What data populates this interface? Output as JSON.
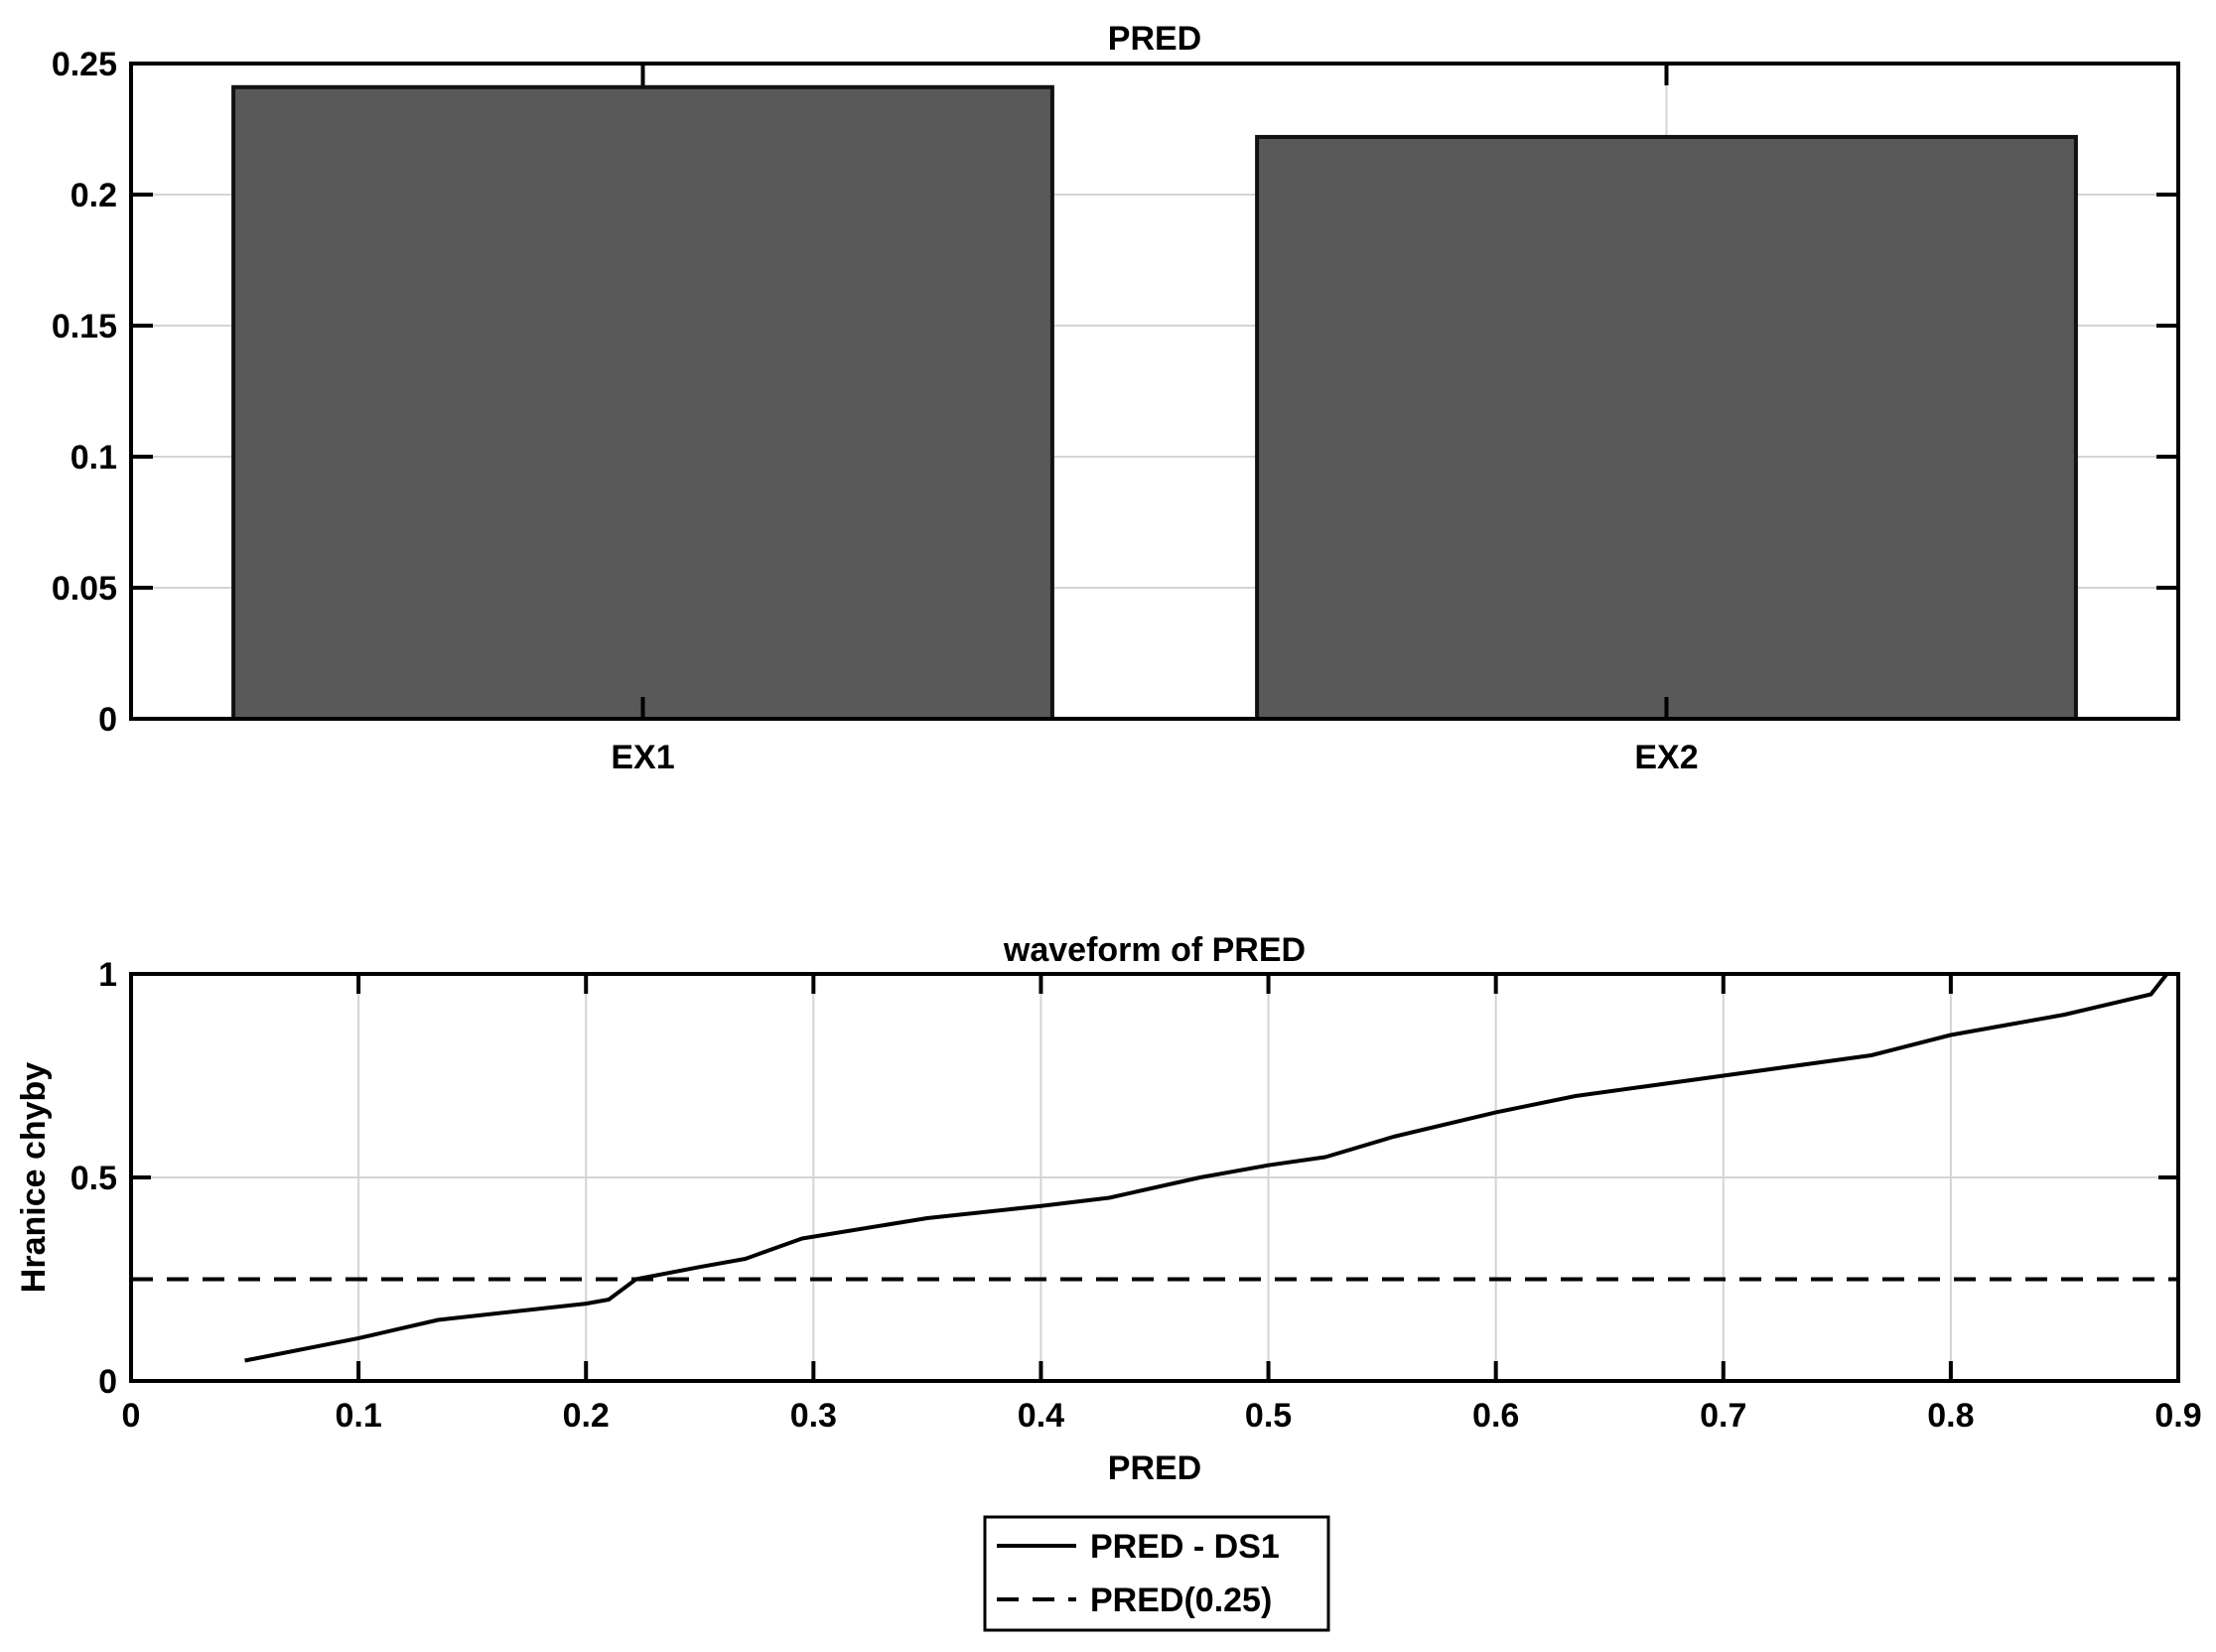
{
  "chart_data": [
    {
      "type": "bar",
      "title": "PRED",
      "xlabel": "",
      "ylabel": "",
      "categories": [
        "EX1",
        "EX2"
      ],
      "values": [
        0.241,
        0.222
      ],
      "ylim": [
        0,
        0.25
      ],
      "yticks": [
        0,
        0.05,
        0.1,
        0.15,
        0.2,
        0.25
      ],
      "ytick_labels": [
        "0",
        "0.05",
        "0.1",
        "0.15",
        "0.2",
        "0.25"
      ],
      "grid": true,
      "bar_color": "#595959"
    },
    {
      "type": "line",
      "title": "waveform of PRED",
      "xlabel": "PRED",
      "ylabel": "Hranice chyby",
      "xlim": [
        0,
        0.9
      ],
      "ylim": [
        0,
        1
      ],
      "xticks": [
        0,
        0.1,
        0.2,
        0.3,
        0.4,
        0.5,
        0.6,
        0.7,
        0.8,
        0.9
      ],
      "xtick_labels": [
        "0",
        "0.1",
        "0.2",
        "0.3",
        "0.4",
        "0.5",
        "0.6",
        "0.7",
        "0.8",
        "0.9"
      ],
      "yticks": [
        0,
        0.5,
        1
      ],
      "ytick_labels": [
        "0",
        "0.5",
        "1"
      ],
      "grid": true,
      "legend_position": "bottom-outside",
      "series": [
        {
          "name": "PRED - DS1",
          "style": "solid",
          "color": "#000000",
          "x": [
            0.05,
            0.1,
            0.135,
            0.2,
            0.21,
            0.222,
            0.25,
            0.27,
            0.295,
            0.35,
            0.4,
            0.43,
            0.47,
            0.5,
            0.525,
            0.555,
            0.6,
            0.635,
            0.7,
            0.765,
            0.8,
            0.85,
            0.888,
            0.895
          ],
          "y": [
            0.05,
            0.105,
            0.15,
            0.19,
            0.2,
            0.25,
            0.28,
            0.3,
            0.35,
            0.4,
            0.43,
            0.45,
            0.5,
            0.53,
            0.55,
            0.6,
            0.66,
            0.7,
            0.75,
            0.8,
            0.85,
            0.9,
            0.95,
            1.0
          ]
        },
        {
          "name": "PRED(0.25)",
          "style": "dashed",
          "color": "#000000",
          "x": [
            0,
            0.9
          ],
          "y": [
            0.25,
            0.25
          ]
        }
      ]
    }
  ]
}
